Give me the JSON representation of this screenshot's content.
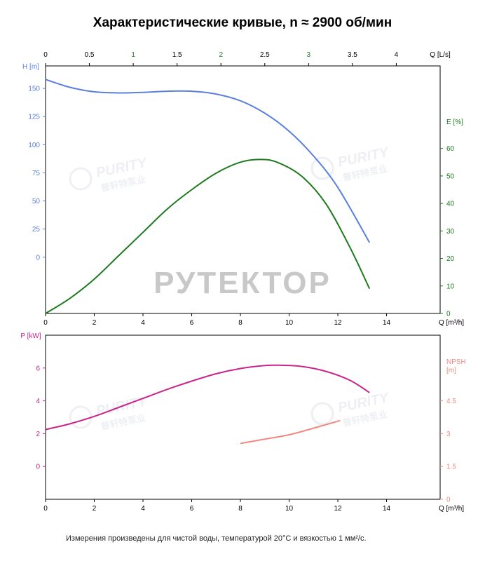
{
  "title": "Характеристические кривые, n ≈ 2900 об/мин",
  "footnote": "Измерения произведены для чистой воды, температурой 20°C и вязкостью 1 мм²/с.",
  "watermark": {
    "main": "РУТЕКТОР",
    "brand": "PURITY",
    "brand_cn": "普轩特泵业"
  },
  "colors": {
    "head": "#5b7fdc",
    "efficiency": "#1e7a1e",
    "power": "#c8268c",
    "npsh": "#f08a80",
    "axis": "#000000"
  },
  "chart_data": [
    {
      "type": "line",
      "x_unit_label": "Q [m³/h]",
      "x2_label": "Q [L/s]",
      "xlim": [
        0,
        16.2
      ],
      "x_ticks": [
        "0",
        "2",
        "4",
        "6",
        "8",
        "10",
        "12",
        "14"
      ],
      "x2_ticks": [
        "0",
        "0.5",
        "1",
        "1.5",
        "2",
        "2.5",
        "3",
        "3.5",
        "4"
      ],
      "y_left_label": "H [m]",
      "y_left_ticks": [
        "0",
        "25",
        "50",
        "75",
        "100",
        "125",
        "150"
      ],
      "y_right_label": "E [%]",
      "y_right_ticks": [
        "0",
        "10",
        "20",
        "30",
        "40",
        "50",
        "60"
      ],
      "series": [
        {
          "axis": "left",
          "ylim": [
            -50,
            170
          ],
          "x": [
            0,
            1,
            2,
            3,
            4,
            5,
            6,
            7,
            8,
            9,
            10,
            11,
            12,
            13.3
          ],
          "y": [
            158,
            151,
            147,
            146,
            146.5,
            147.5,
            147.5,
            145,
            139,
            128,
            112,
            90,
            62,
            13
          ]
        },
        {
          "axis": "right",
          "ylim": [
            0,
            90
          ],
          "x": [
            0,
            1,
            2,
            3,
            4,
            5,
            6,
            7,
            8,
            8.8,
            9.5,
            10.5,
            11.5,
            12.5,
            13.3
          ],
          "y": [
            0,
            5.5,
            12.5,
            21,
            29.5,
            38,
            45,
            51,
            55,
            56,
            55,
            50,
            40,
            24,
            9
          ]
        }
      ]
    },
    {
      "type": "line",
      "x_unit_label": "Q [m³/h]",
      "xlim": [
        0,
        16.2
      ],
      "x_ticks": [
        "0",
        "2",
        "4",
        "6",
        "8",
        "10",
        "12",
        "14"
      ],
      "y_left_label": "P [kW]",
      "y_left_ticks": [
        "0",
        "2",
        "4",
        "6"
      ],
      "y_right_label": "NPSH [m]",
      "y_right_ticks": [
        "0",
        "1.5",
        "3",
        "4.5"
      ],
      "series": [
        {
          "axis": "left",
          "ylim": [
            -2,
            8
          ],
          "x": [
            0,
            1,
            2,
            3,
            4,
            5,
            6,
            7,
            8,
            9,
            9.6,
            10.5,
            11.5,
            12.5,
            13.3
          ],
          "y": [
            2.25,
            2.6,
            3.05,
            3.6,
            4.15,
            4.7,
            5.2,
            5.65,
            5.97,
            6.15,
            6.17,
            6.1,
            5.8,
            5.25,
            4.5
          ]
        },
        {
          "axis": "right",
          "ylim": [
            0,
            7.5
          ],
          "x": [
            8,
            9,
            10,
            11,
            12.1
          ],
          "y": [
            2.55,
            2.75,
            2.95,
            3.25,
            3.6
          ]
        }
      ]
    }
  ]
}
